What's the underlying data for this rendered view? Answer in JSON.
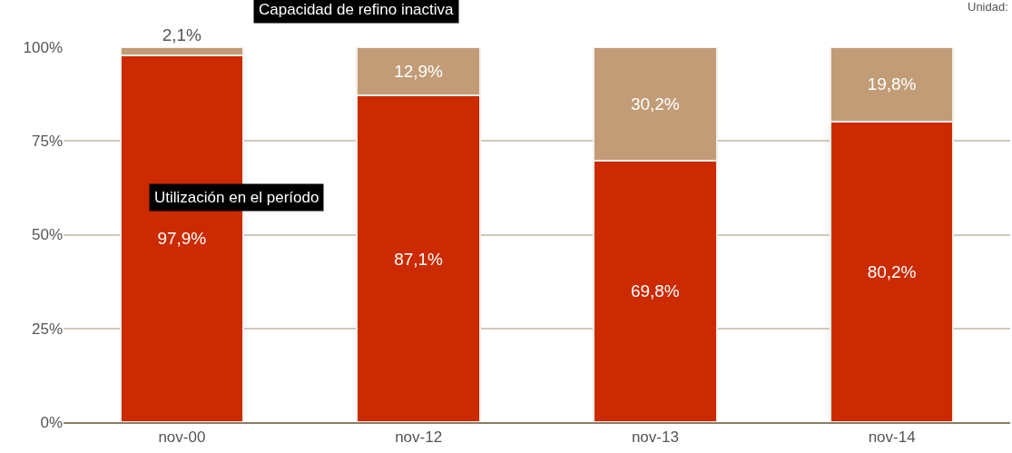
{
  "chart_data": {
    "type": "bar",
    "stacked": true,
    "categories": [
      "nov-00",
      "nov-12",
      "nov-13",
      "nov-14"
    ],
    "series": [
      {
        "name": "Utilización en el período",
        "color": "#cc2a00",
        "values": [
          97.9,
          87.1,
          69.8,
          80.2
        ],
        "value_labels": [
          "97,9%",
          "87,1%",
          "69,8%",
          "80,2%"
        ]
      },
      {
        "name": "Capacidad de refino inactiva",
        "color": "#c19c76",
        "values": [
          2.1,
          12.9,
          30.2,
          19.8
        ],
        "value_labels": [
          "2,1%",
          "12,9%",
          "30,2%",
          "19,8%"
        ]
      }
    ],
    "ylim": [
      0,
      100
    ],
    "yticks": [
      {
        "value": 0,
        "label": "0%"
      },
      {
        "value": 25,
        "label": "25%"
      },
      {
        "value": 50,
        "label": "50%"
      },
      {
        "value": 75,
        "label": "75%"
      },
      {
        "value": 100,
        "label": "100%"
      }
    ],
    "grid": "y",
    "legend": false,
    "annotations": [
      "Unidad:"
    ]
  }
}
